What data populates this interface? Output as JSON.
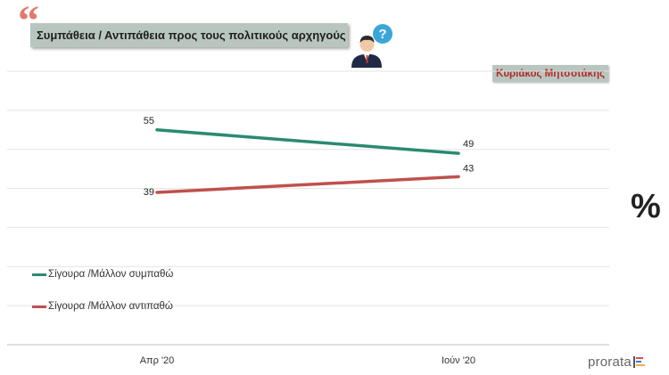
{
  "title": "Συμπάθεια / Αντιπάθεια προς τους πολιτικούς αρχηγούς",
  "subject": "Κυριάκος Μητσοτάκης",
  "unit_symbol": "%",
  "brand": "prorata",
  "colors": {
    "positive": "#2a8a72",
    "negative": "#c0504d",
    "title_bg": "#b9c6c0",
    "accent_red": "#b02a2a"
  },
  "chart_data": {
    "type": "line",
    "categories": [
      "Απρ '20",
      "Ιούν '20"
    ],
    "series": [
      {
        "name": "Σίγουρα /Μάλλον συμπαθώ",
        "values": [
          55,
          49
        ],
        "color": "#2a8a72"
      },
      {
        "name": "Σίγουρα /Μάλλον αντιπαθώ",
        "values": [
          39,
          43
        ],
        "color": "#c0504d"
      }
    ],
    "ylim": [
      0,
      70
    ],
    "grid": true,
    "legend_position": "bottom-left"
  }
}
